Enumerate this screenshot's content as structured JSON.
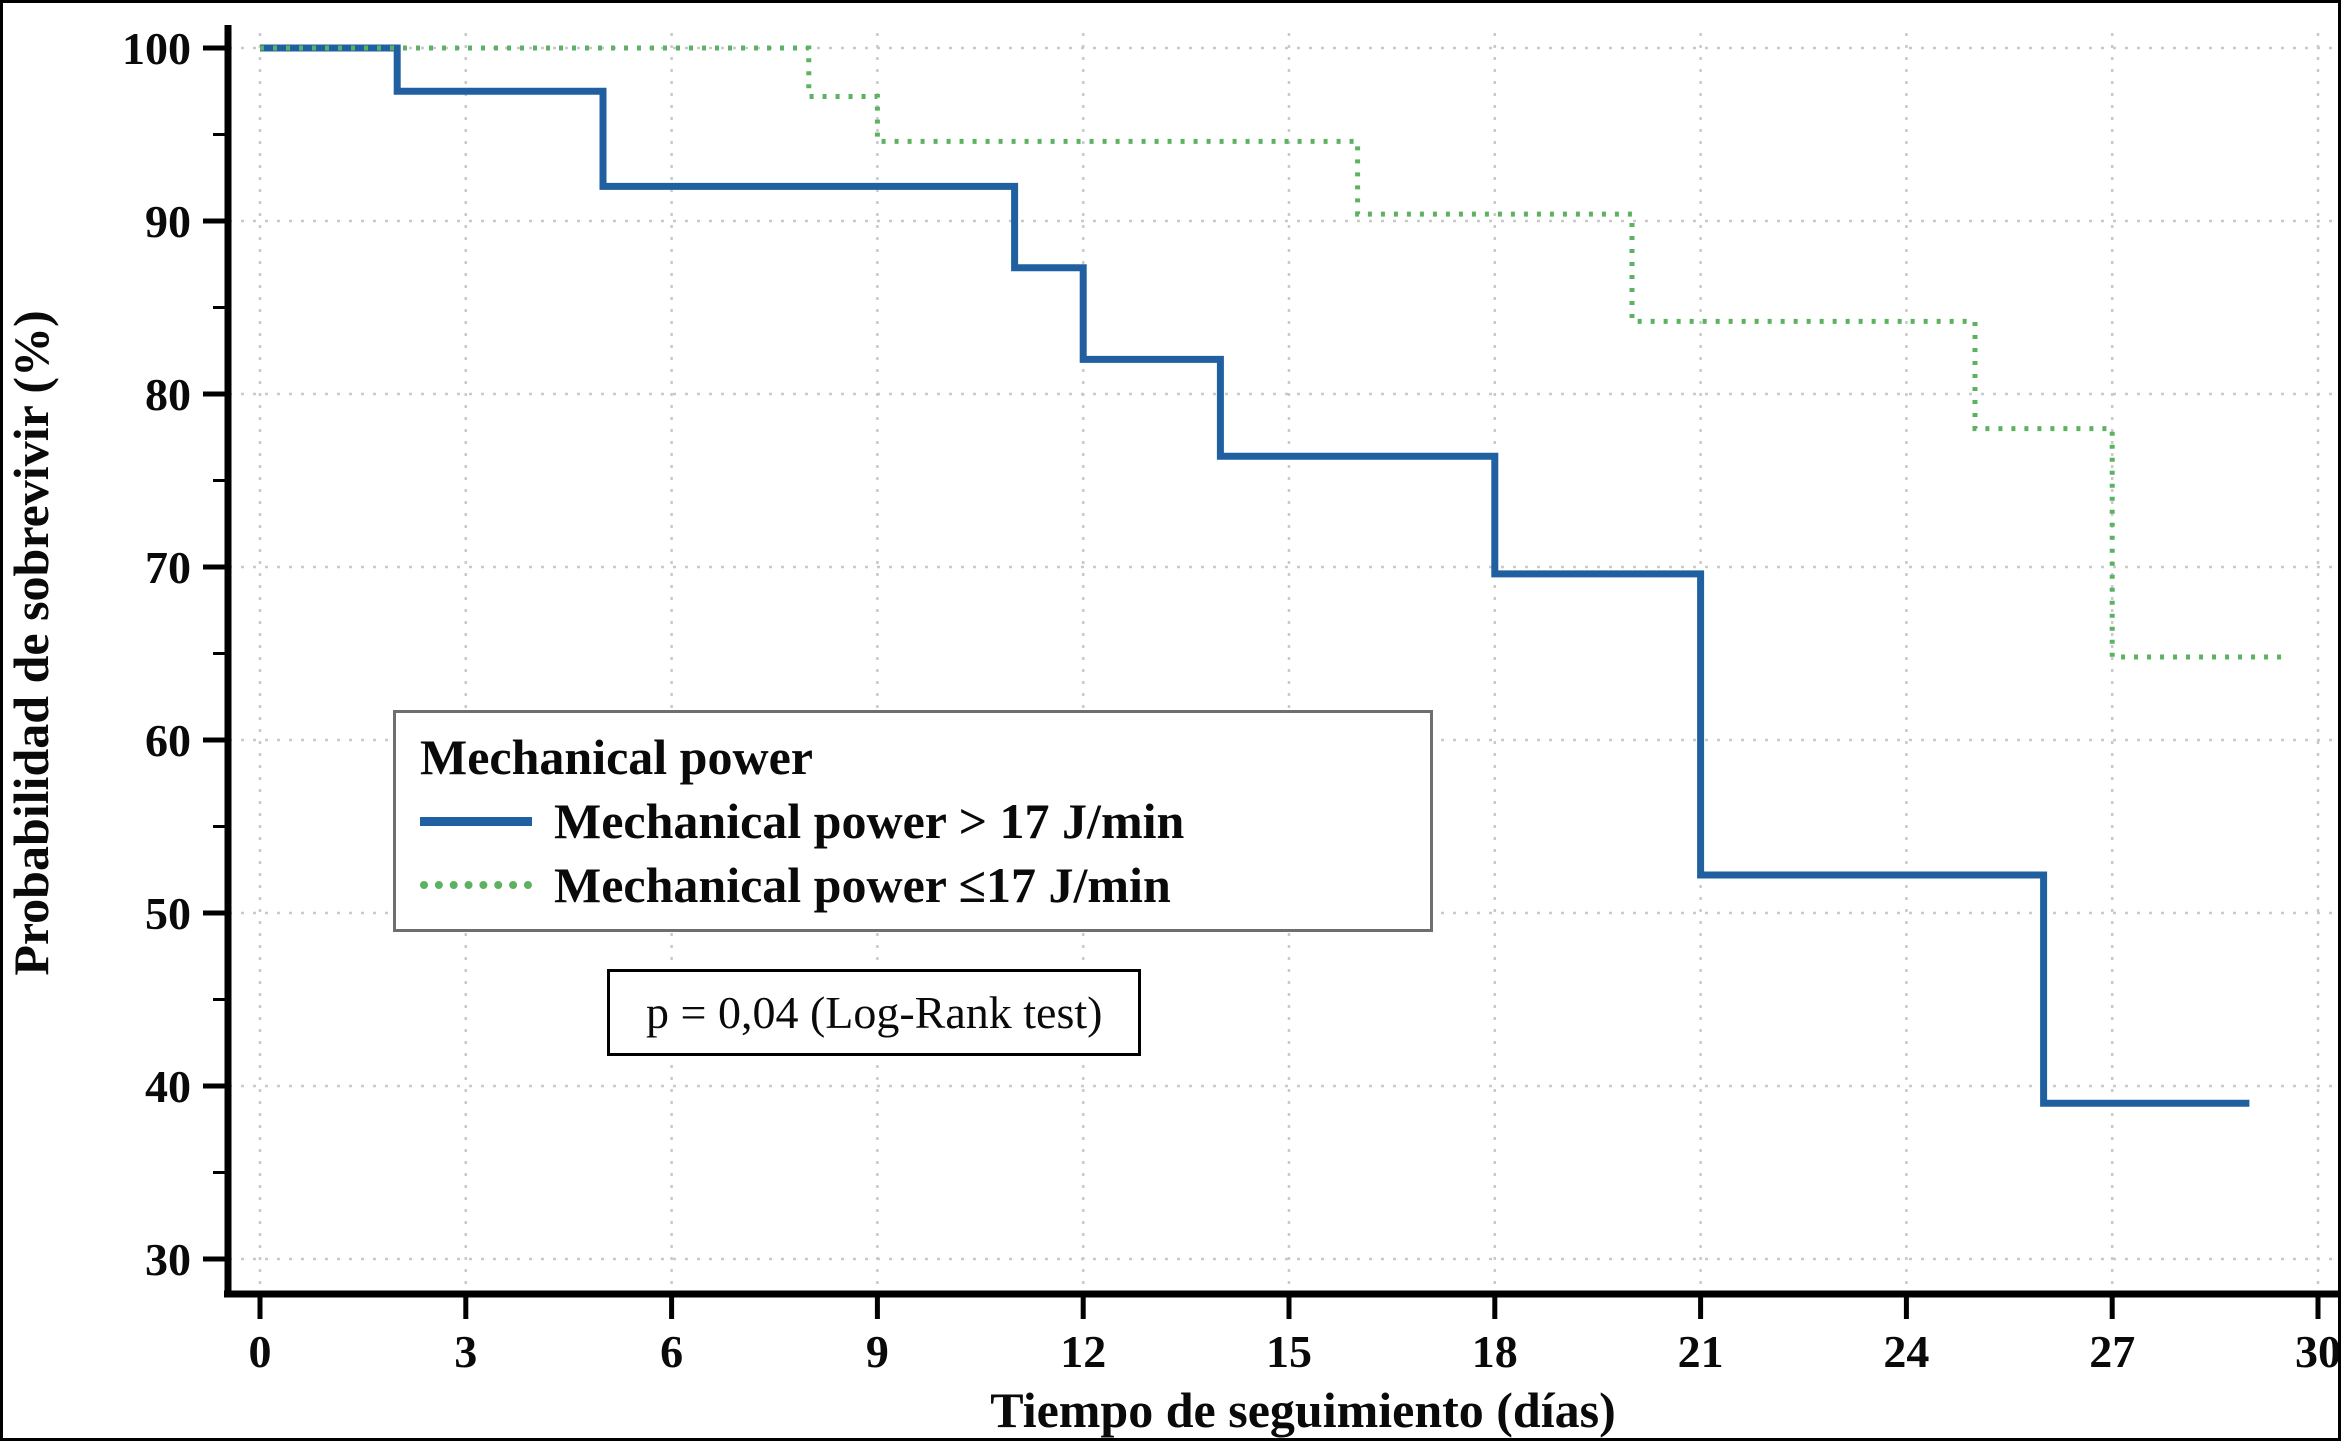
{
  "figure": {
    "background": "#ffffff",
    "border_color": "#000000"
  },
  "chart_data": {
    "type": "line",
    "subtype": "kaplan-meier-step-curves",
    "title": "",
    "xlabel": "Tiempo de seguimiento (días)",
    "ylabel": "Probabilidad de sobrevivir (%)",
    "xlim": [
      0,
      30
    ],
    "ylim": [
      30,
      100
    ],
    "xticks": [
      0,
      3,
      6,
      9,
      12,
      15,
      18,
      21,
      24,
      27,
      30
    ],
    "yticks": [
      30,
      40,
      50,
      60,
      70,
      80,
      90,
      100
    ],
    "y_minor_step": 5,
    "grid": true,
    "grid_style": "dotted",
    "grid_color": "#c9c9c9",
    "axis_color": "#000000",
    "legend": {
      "title": "Mechanical power",
      "position": "center-left",
      "entries": [
        {
          "label": "Mechanical power > 17 J/min",
          "color": "#2060a0",
          "style": "solid"
        },
        {
          "label": "Mechanical power ≤17 J/min",
          "color": "#5cb260",
          "style": "dotted"
        }
      ]
    },
    "annotation": "p = 0,04 (Log-Rank test)",
    "series": [
      {
        "name": "Mechanical power > 17 J/min",
        "color": "#2060a0",
        "style": "solid",
        "points": [
          [
            0,
            100
          ],
          [
            2,
            100
          ],
          [
            2,
            97.5
          ],
          [
            5,
            97.5
          ],
          [
            5,
            92
          ],
          [
            11,
            92
          ],
          [
            11,
            87.3
          ],
          [
            12,
            87.3
          ],
          [
            12,
            82
          ],
          [
            14,
            82
          ],
          [
            14,
            76.4
          ],
          [
            18,
            76.4
          ],
          [
            18,
            69.6
          ],
          [
            21,
            69.6
          ],
          [
            21,
            52.2
          ],
          [
            26,
            52.2
          ],
          [
            26,
            39
          ],
          [
            29,
            39
          ]
        ]
      },
      {
        "name": "Mechanical power ≤17 J/min",
        "color": "#5cb260",
        "style": "dotted",
        "points": [
          [
            0,
            100
          ],
          [
            8,
            100
          ],
          [
            8,
            97.2
          ],
          [
            9,
            97.2
          ],
          [
            9,
            94.6
          ],
          [
            16,
            94.6
          ],
          [
            16,
            90.4
          ],
          [
            20,
            90.4
          ],
          [
            20,
            84.2
          ],
          [
            25,
            84.2
          ],
          [
            25,
            78
          ],
          [
            27,
            78
          ],
          [
            27,
            64.8
          ],
          [
            29.5,
            64.8
          ]
        ]
      }
    ]
  }
}
